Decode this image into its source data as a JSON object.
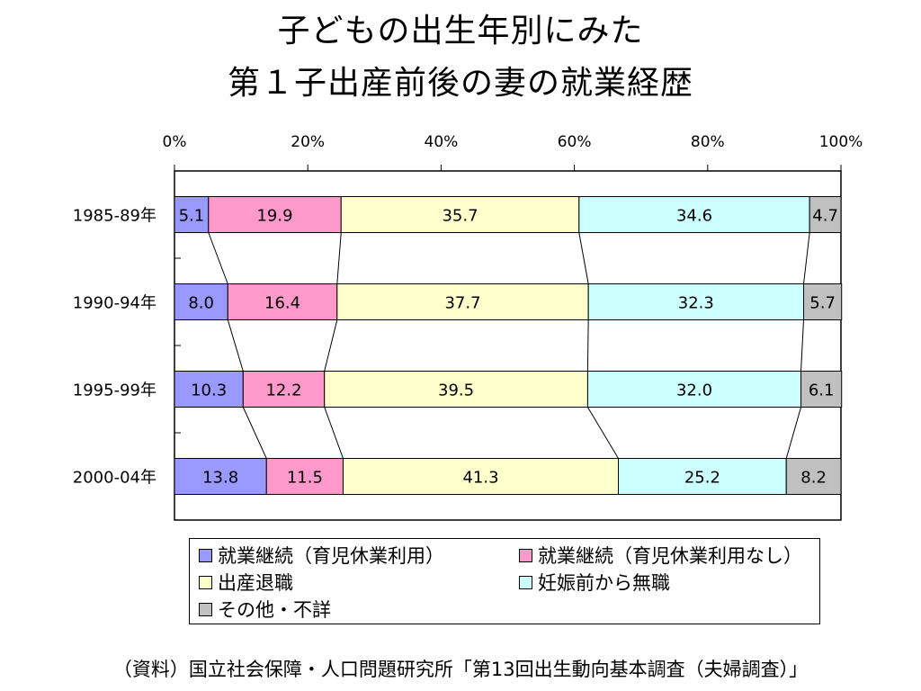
{
  "title_line1": "子どもの出生年別にみた",
  "title_line2": "第１子出産前後の妻の就業経歴",
  "source": "（資料）国立社会保障・人口問題研究所「第13回出生動向基本調査（夫婦調査）」",
  "chart_data": {
    "type": "bar",
    "orientation": "horizontal",
    "stacked": true,
    "percent_stacked": true,
    "categories": [
      "1985-89年",
      "1990-94年",
      "1995-99年",
      "2000-04年"
    ],
    "x_ticks": [
      "0%",
      "20%",
      "40%",
      "60%",
      "80%",
      "100%"
    ],
    "xlim": [
      0,
      100
    ],
    "grid": false,
    "legend_position": "bottom",
    "series_connectors": true,
    "series": [
      {
        "name": "就業継続（育児休業利用）",
        "color": "#9999ff",
        "values": [
          5.1,
          8.0,
          10.3,
          13.8
        ],
        "labels": [
          "5.1",
          "8.0",
          "10.3",
          "13.8"
        ]
      },
      {
        "name": "就業継続（育児休業利用なし）",
        "color": "#ff99cc",
        "values": [
          19.9,
          16.4,
          12.2,
          11.5
        ],
        "labels": [
          "19.9",
          "16.4",
          "12.2",
          "11.5"
        ]
      },
      {
        "name": "出産退職",
        "color": "#ffffcc",
        "values": [
          35.7,
          37.7,
          39.5,
          41.3
        ],
        "labels": [
          "35.7",
          "37.7",
          "39.5",
          "41.3"
        ]
      },
      {
        "name": "妊娠前から無職",
        "color": "#ccffff",
        "values": [
          34.6,
          32.3,
          32.0,
          25.2
        ],
        "labels": [
          "34.6",
          "32.3",
          "32.0",
          "25.2"
        ]
      },
      {
        "name": "その他・不詳",
        "color": "#c0c0c0",
        "values": [
          4.7,
          5.7,
          6.1,
          8.2
        ],
        "labels": [
          "4.7",
          "5.7",
          "6.1",
          "8.2"
        ]
      }
    ]
  }
}
